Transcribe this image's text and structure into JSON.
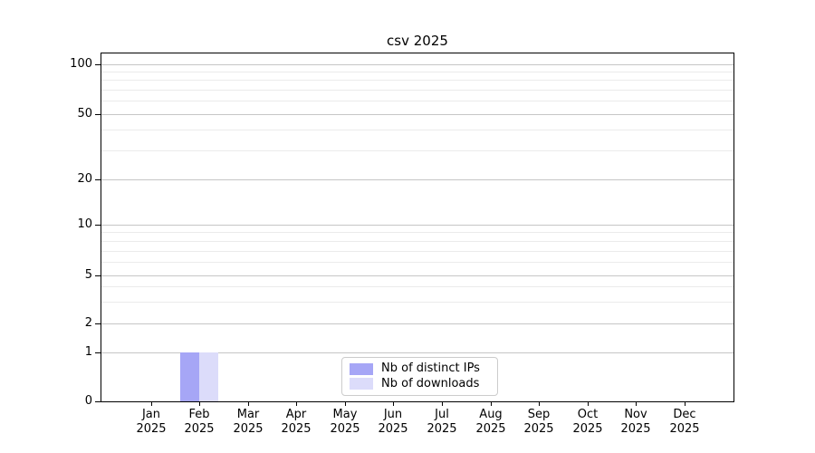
{
  "chart_data": {
    "type": "bar",
    "title": "csv 2025",
    "categories": [
      "Jan",
      "Feb",
      "Mar",
      "Apr",
      "May",
      "Jun",
      "Jul",
      "Aug",
      "Sep",
      "Oct",
      "Nov",
      "Dec"
    ],
    "category_year": "2025",
    "series": [
      {
        "name": "Nb of distinct IPs",
        "color": "#a6a6f6",
        "values": [
          0,
          1,
          0,
          0,
          0,
          0,
          0,
          0,
          0,
          0,
          0,
          0
        ]
      },
      {
        "name": "Nb of downloads",
        "color": "#dcdcfa",
        "values": [
          0,
          1,
          0,
          0,
          0,
          0,
          0,
          0,
          0,
          0,
          0,
          0
        ]
      }
    ],
    "yticks": [
      0,
      1,
      2,
      5,
      10,
      20,
      50,
      100
    ],
    "minor_gridline_values": [
      3,
      4,
      6,
      7,
      8,
      9,
      30,
      40,
      60,
      70,
      80,
      90
    ],
    "yscale": "symlog",
    "ylim": [
      0,
      115
    ],
    "grid": true,
    "legend_position": "lower center",
    "xlabel": "",
    "ylabel": ""
  }
}
